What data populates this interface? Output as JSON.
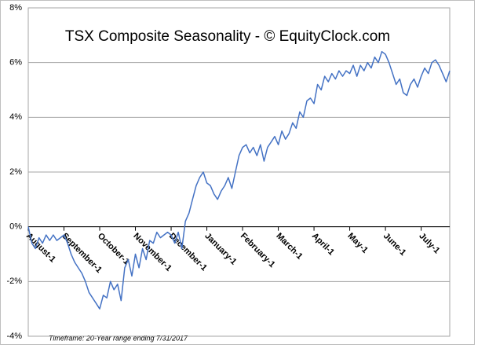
{
  "chart_data": {
    "type": "line",
    "title": "TSX Composite Seasonality - © EquityClock.com",
    "note": "Timeframe: 20-Year range ending 7/31/2017",
    "series": [
      {
        "color": "#4472c4",
        "values": [
          0,
          -0.6,
          -0.8,
          -0.4,
          -0.6,
          -0.3,
          -0.5,
          -0.3,
          -0.5,
          -0.4,
          -0.3,
          -0.6,
          -1.0,
          -1.3,
          -1.5,
          -1.7,
          -2.0,
          -2.4,
          -2.6,
          -2.8,
          -3.0,
          -2.5,
          -2.6,
          -2.0,
          -2.3,
          -2.1,
          -2.7,
          -1.5,
          -1.2,
          -1.8,
          -1.0,
          -1.5,
          -0.8,
          -1.2,
          -0.5,
          -0.6,
          -0.2,
          -0.4,
          -0.3,
          -0.2,
          -0.3,
          -0.6,
          -0.2,
          -0.8,
          0.2,
          0.5,
          1.0,
          1.5,
          1.8,
          2.0,
          1.6,
          1.5,
          1.2,
          1.0,
          1.3,
          1.5,
          1.8,
          1.4,
          2.0,
          2.6,
          2.9,
          3.0,
          2.7,
          2.9,
          2.6,
          3.0,
          2.4,
          2.9,
          3.1,
          3.3,
          3.0,
          3.5,
          3.2,
          3.4,
          3.8,
          3.6,
          4.2,
          4.0,
          4.6,
          4.7,
          4.5,
          5.2,
          5.0,
          5.5,
          5.3,
          5.6,
          5.4,
          5.7,
          5.5,
          5.7,
          5.6,
          5.9,
          5.5,
          5.9,
          5.7,
          6.0,
          5.8,
          6.2,
          6.0,
          6.4,
          6.3,
          6.0,
          5.6,
          5.2,
          5.4,
          4.9,
          4.8,
          5.2,
          5.4,
          5.1,
          5.5,
          5.8,
          5.6,
          6.0,
          6.1,
          5.9,
          5.6,
          5.3,
          5.7
        ]
      }
    ],
    "xlim": [
      0,
      118
    ],
    "xticks": [
      {
        "value": 0,
        "label": "August-1"
      },
      {
        "value": 10,
        "label": "September-1"
      },
      {
        "value": 20,
        "label": "October-1"
      },
      {
        "value": 30,
        "label": "November-1"
      },
      {
        "value": 40,
        "label": "December-1"
      },
      {
        "value": 50,
        "label": "January-1"
      },
      {
        "value": 60,
        "label": "February-1"
      },
      {
        "value": 70,
        "label": "March-1"
      },
      {
        "value": 80,
        "label": "April-1"
      },
      {
        "value": 90,
        "label": "May-1"
      },
      {
        "value": 100,
        "label": "June-1"
      },
      {
        "value": 110,
        "label": "July-1"
      }
    ],
    "ylim": [
      -4,
      8
    ],
    "yticks": [
      {
        "value": -4,
        "label": "-4%"
      },
      {
        "value": -2,
        "label": "-2%"
      },
      {
        "value": 0,
        "label": "0%"
      },
      {
        "value": 2,
        "label": "2%"
      },
      {
        "value": 4,
        "label": "4%"
      },
      {
        "value": 6,
        "label": "6%"
      },
      {
        "value": 8,
        "label": "8%"
      }
    ],
    "grid": true
  }
}
